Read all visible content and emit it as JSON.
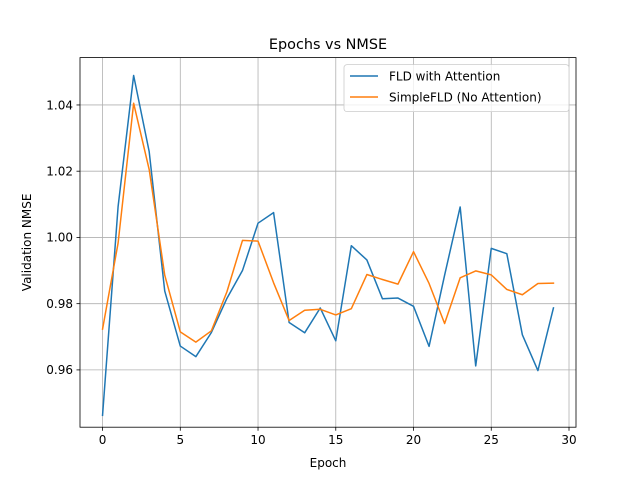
{
  "chart_data": {
    "type": "line",
    "title": "Epochs vs NMSE",
    "xlabel": "Epoch",
    "ylabel": "Validation NMSE",
    "xlim": [
      -1.45,
      30.45
    ],
    "ylim": [
      0.9427,
      1.0543
    ],
    "xticks": [
      0,
      5,
      10,
      15,
      20,
      25,
      30
    ],
    "yticks": [
      0.96,
      0.98,
      1.0,
      1.02,
      1.04
    ],
    "xtick_labels": [
      "0",
      "5",
      "10",
      "15",
      "20",
      "25",
      "30"
    ],
    "ytick_labels": [
      "0.96",
      "0.98",
      "1.00",
      "1.02",
      "1.04"
    ],
    "grid": true,
    "legend_position": "top-right",
    "x": [
      0,
      1,
      2,
      3,
      4,
      5,
      6,
      7,
      8,
      9,
      10,
      11,
      12,
      13,
      14,
      15,
      16,
      17,
      18,
      19,
      20,
      21,
      22,
      23,
      24,
      25,
      26,
      27,
      28,
      29
    ],
    "series": [
      {
        "name": "FLD with Attention",
        "color": "#1f77b4",
        "values": [
          0.9463,
          1.0093,
          1.0489,
          1.0259,
          0.9838,
          0.9672,
          0.964,
          0.9713,
          0.9816,
          0.99,
          1.0043,
          1.0075,
          0.9743,
          0.9712,
          0.9787,
          0.9688,
          0.9975,
          0.9932,
          0.9815,
          0.9817,
          0.9792,
          0.9671,
          0.9886,
          1.0092,
          0.9612,
          0.9967,
          0.9951,
          0.9706,
          0.9598,
          0.9787
        ]
      },
      {
        "name": "SimpleFLD (No Attention)",
        "color": "#ff7f0e",
        "values": [
          0.9723,
          0.9983,
          1.0405,
          1.0205,
          0.9886,
          0.9715,
          0.9684,
          0.9718,
          0.9836,
          0.9991,
          0.9989,
          0.9863,
          0.9749,
          0.978,
          0.9783,
          0.9766,
          0.9785,
          0.9888,
          0.9873,
          0.9859,
          0.9957,
          0.9861,
          0.974,
          0.9878,
          0.9899,
          0.9887,
          0.9843,
          0.9827,
          0.9861,
          0.9862
        ]
      }
    ]
  }
}
